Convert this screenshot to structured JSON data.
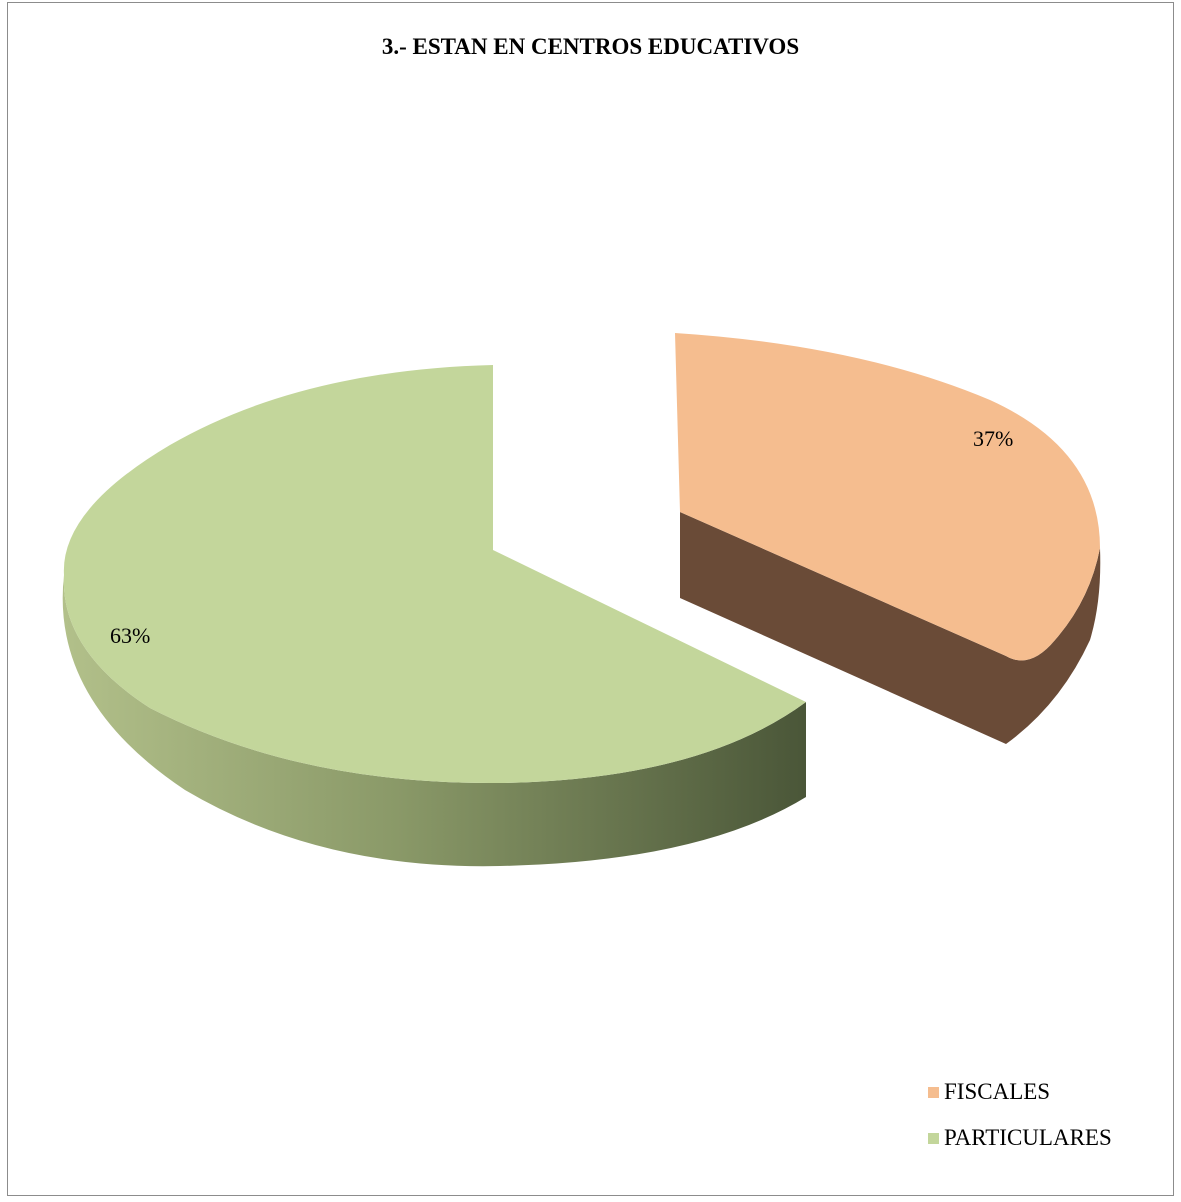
{
  "chart_data": {
    "type": "pie",
    "title": "3.- ESTAN EN CENTROS EDUCATIVOS",
    "categories": [
      "FISCALES",
      "PARTICULARES"
    ],
    "values": [
      37,
      63
    ],
    "data_labels": [
      "37%",
      "63%"
    ],
    "colors": {
      "FISCALES": "#f5bd8f",
      "FISCALES_side": "#6a4b37",
      "PARTICULARES": "#c3d69b",
      "PARTICULARES_side_light": "#aebc86",
      "PARTICULARES_side_dark": "#4a5638"
    },
    "legend_position": "bottom-right",
    "style": "3d-exploded"
  }
}
